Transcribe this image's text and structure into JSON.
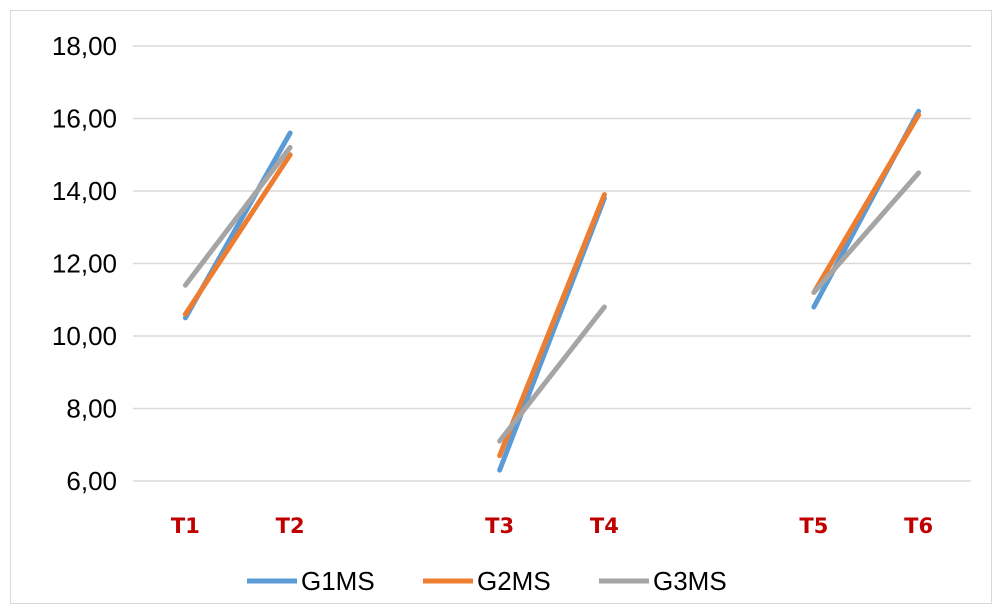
{
  "chart_data": {
    "type": "line",
    "title": "",
    "xlabel": "",
    "ylabel": "",
    "ylim": [
      6,
      18
    ],
    "yticks": [
      6,
      8,
      10,
      12,
      14,
      16,
      18
    ],
    "ytick_labels": [
      "6,00",
      "8,00",
      "10,00",
      "12,00",
      "14,00",
      "16,00",
      "18,00"
    ],
    "grid": true,
    "legend_position": "bottom",
    "categories": [
      "T1",
      "T2",
      "",
      "T3",
      "T4",
      "",
      "T5",
      "T6"
    ],
    "series": [
      {
        "name": "G1MS",
        "color": "#5b9bd5",
        "segments": [
          [
            10.5,
            15.6
          ],
          [
            6.3,
            13.8
          ],
          [
            10.8,
            16.2
          ]
        ]
      },
      {
        "name": "G2MS",
        "color": "#ed7d31",
        "segments": [
          [
            10.6,
            15.0
          ],
          [
            6.7,
            13.9
          ],
          [
            11.2,
            16.1
          ]
        ]
      },
      {
        "name": "G3MS",
        "color": "#a5a5a5",
        "segments": [
          [
            11.4,
            15.2
          ],
          [
            7.1,
            10.8
          ],
          [
            11.2,
            14.5
          ]
        ]
      }
    ],
    "segment_categories": [
      [
        "T1",
        "T2"
      ],
      [
        "T3",
        "T4"
      ],
      [
        "T5",
        "T6"
      ]
    ]
  }
}
